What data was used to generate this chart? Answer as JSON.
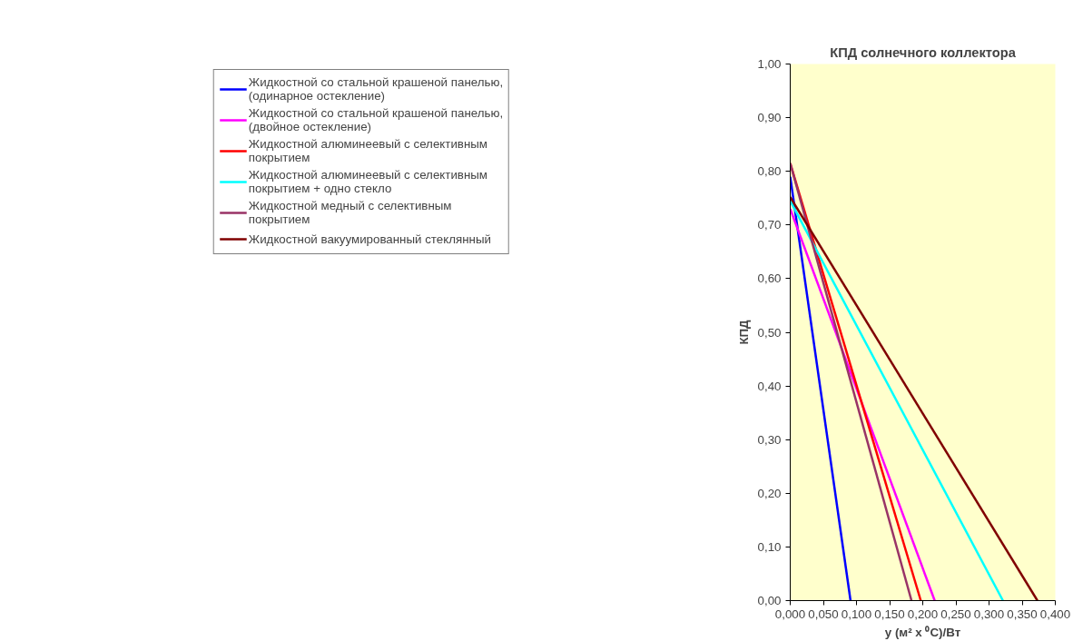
{
  "chart_data": {
    "type": "line",
    "title": "КПД солнечного коллектора",
    "xlabel": "y (м² x ⁰C)/Вт",
    "ylabel": "КПД",
    "xlim": [
      0,
      0.4
    ],
    "ylim": [
      0,
      1
    ],
    "xticks": [
      {
        "value": 0,
        "label": "0,000"
      },
      {
        "value": 0.05,
        "label": "0,050"
      },
      {
        "value": 0.1,
        "label": "0,100"
      },
      {
        "value": 0.15,
        "label": "0,150"
      },
      {
        "value": 0.2,
        "label": "0,200"
      },
      {
        "value": 0.25,
        "label": "0,250"
      },
      {
        "value": 0.3,
        "label": "0,300"
      },
      {
        "value": 0.35,
        "label": "0,350"
      },
      {
        "value": 0.4,
        "label": "0,400"
      }
    ],
    "yticks": [
      {
        "value": 0,
        "label": "0,00"
      },
      {
        "value": 0.1,
        "label": "0,10"
      },
      {
        "value": 0.2,
        "label": "0,20"
      },
      {
        "value": 0.3,
        "label": "0,30"
      },
      {
        "value": 0.4,
        "label": "0,40"
      },
      {
        "value": 0.5,
        "label": "0,50"
      },
      {
        "value": 0.6,
        "label": "0,60"
      },
      {
        "value": 0.7,
        "label": "0,70"
      },
      {
        "value": 0.8,
        "label": "0,80"
      },
      {
        "value": 0.9,
        "label": "0,90"
      },
      {
        "value": 1,
        "label": "1,00"
      }
    ],
    "grid": false,
    "legend": "left",
    "marker": "none",
    "line_style": "solid",
    "series": [
      {
        "name": "Жидкостной со стальной крашеной панелью,\n(одинарное остекление)",
        "color": "#0000ff",
        "x": [
          0,
          0.091
        ],
        "values": [
          0.79,
          0
        ]
      },
      {
        "name": "Жидкостной со стальной крашеной панелью,\n(двойное остекление)",
        "color": "#ff00ff",
        "x": [
          0,
          0.218
        ],
        "values": [
          0.73,
          0
        ]
      },
      {
        "name": "Жидкостной алюминеевый с селективным\nпокрытием",
        "color": "#ff0000",
        "x": [
          0,
          0.197
        ],
        "values": [
          0.815,
          0
        ]
      },
      {
        "name": "Жидкостной алюминеевый с селективным\nпокрытием + одно стекло",
        "color": "#00ffff",
        "x": [
          0,
          0.321
        ],
        "values": [
          0.745,
          0
        ]
      },
      {
        "name": "Жидкостной медный с селективным\nпокрытием",
        "color": "#993366",
        "x": [
          0,
          0.183
        ],
        "values": [
          0.815,
          0
        ]
      },
      {
        "name": "Жидкостной вакуумированный стеклянный",
        "color": "#800000",
        "x": [
          0,
          0.373
        ],
        "values": [
          0.752,
          0
        ]
      }
    ]
  }
}
